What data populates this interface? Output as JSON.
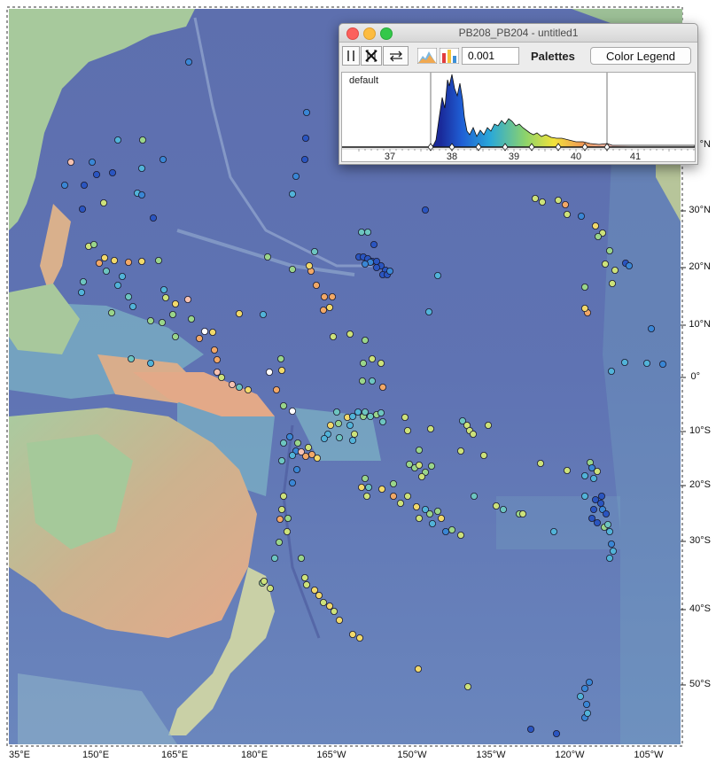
{
  "window": {
    "title": "PB208_PB204 - untitled1",
    "precision_value": "0.001",
    "palettes_label": "Palettes",
    "color_legend_label": "Color Legend",
    "palette_name": "default",
    "axis_ticks": [
      "37",
      "38",
      "39",
      "40",
      "41"
    ],
    "traffic_colors": [
      "#fc605c",
      "#fdbc40",
      "#34c84a"
    ]
  },
  "map": {
    "lat_labels": [
      "30°N",
      "20°N",
      "10°N",
      "0°",
      "10°S",
      "20°S",
      "30°S",
      "40°S",
      "50°S"
    ],
    "lon_labels": [
      "35°E",
      "150°E",
      "165°E",
      "180°E",
      "165°W",
      "150°W",
      "135°W",
      "120°W",
      "105°W"
    ],
    "partial_lat_label": "°N"
  },
  "colors": {
    "ocean_deep": "#5b6fb0",
    "ocean_mid": "#6d8cc2",
    "ocean_shelf": "#7fb8c8",
    "land_low": "#9fc89a",
    "land_high": "#e5a888"
  }
}
